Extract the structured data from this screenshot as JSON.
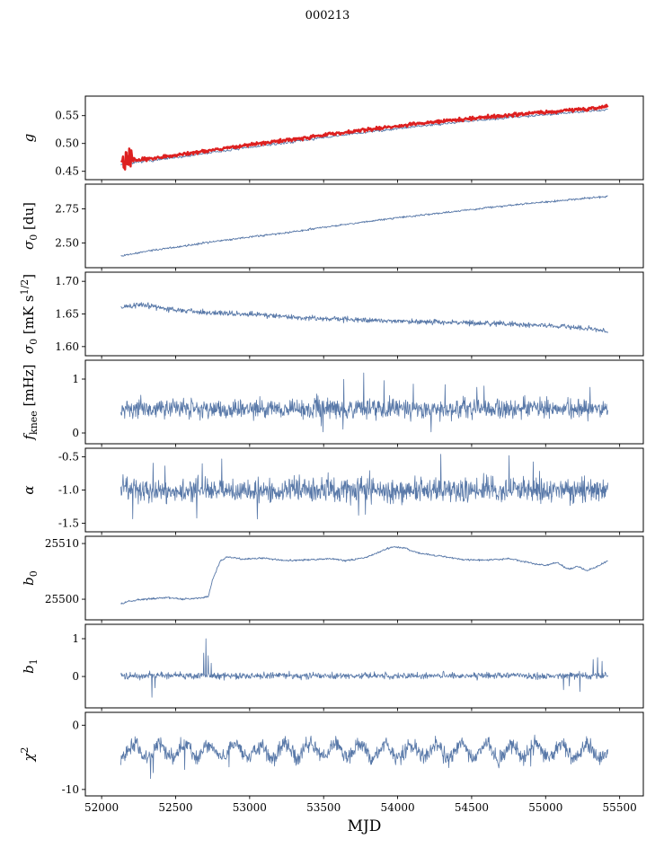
{
  "title": "000213",
  "chart_data": {
    "type": "line",
    "title": "000213",
    "xlabel": "MJD",
    "xlim": [
      51890,
      55660
    ],
    "xdata": [
      52130,
      55420
    ],
    "xticks": [
      52000,
      52500,
      53000,
      53500,
      54000,
      54500,
      55000,
      55500
    ],
    "seed": 7,
    "grid": false,
    "legend": "none",
    "colors": {
      "blue": "#5878a8",
      "red": "#dd2020"
    },
    "panels": [
      {
        "name": "g",
        "label": [
          {
            "t": "g",
            "i": 1
          }
        ],
        "ylim": [
          0.435,
          0.585
        ],
        "yticks": [
          0.45,
          0.5,
          0.55
        ],
        "dec": 2,
        "series": [
          {
            "color": "blue",
            "lw": 0.9,
            "n": 700,
            "noise": 0.0012,
            "trend": [
              [
                52130,
                0.4625
              ],
              [
                52300,
                0.468
              ],
              [
                52500,
                0.4745
              ],
              [
                52750,
                0.484
              ],
              [
                53000,
                0.493
              ],
              [
                53250,
                0.5015
              ],
              [
                53500,
                0.5105
              ],
              [
                53750,
                0.519
              ],
              [
                54000,
                0.527
              ],
              [
                54250,
                0.534
              ],
              [
                54500,
                0.5405
              ],
              [
                54750,
                0.5465
              ],
              [
                55000,
                0.552
              ],
              [
                55150,
                0.555
              ],
              [
                55300,
                0.558
              ],
              [
                55370,
                0.5595
              ],
              [
                55420,
                0.561
              ]
            ]
          },
          {
            "color": "red",
            "lw": 2.4,
            "n": 700,
            "noise": 0.0017,
            "head": {
              "until": 52210,
              "amp": 0.011
            },
            "trend": [
              [
                52130,
                0.467
              ],
              [
                52300,
                0.4725
              ],
              [
                52500,
                0.479
              ],
              [
                52750,
                0.4885
              ],
              [
                53000,
                0.4975
              ],
              [
                53250,
                0.506
              ],
              [
                53500,
                0.515
              ],
              [
                53750,
                0.5235
              ],
              [
                54000,
                0.5315
              ],
              [
                54250,
                0.5385
              ],
              [
                54500,
                0.545
              ],
              [
                54750,
                0.551
              ],
              [
                55000,
                0.5565
              ],
              [
                55150,
                0.5595
              ],
              [
                55300,
                0.5625
              ],
              [
                55420,
                0.567
              ]
            ]
          }
        ]
      },
      {
        "name": "sigma0 [du]",
        "label": [
          {
            "t": "σ",
            "i": 1
          },
          {
            "t": "0",
            "sub": 1
          },
          {
            "t": " [du]"
          }
        ],
        "ylim": [
          2.32,
          2.93
        ],
        "yticks": [
          2.5,
          2.75
        ],
        "dec": 2,
        "series": [
          {
            "color": "blue",
            "lw": 0.9,
            "n": 800,
            "noise": 0.004,
            "trend": [
              [
                52130,
                2.405
              ],
              [
                52300,
                2.44
              ],
              [
                52500,
                2.47
              ],
              [
                52750,
                2.51
              ],
              [
                53000,
                2.545
              ],
              [
                53250,
                2.575
              ],
              [
                53500,
                2.615
              ],
              [
                53750,
                2.65
              ],
              [
                54000,
                2.685
              ],
              [
                54250,
                2.715
              ],
              [
                54500,
                2.745
              ],
              [
                54750,
                2.775
              ],
              [
                55000,
                2.8
              ],
              [
                55200,
                2.82
              ],
              [
                55420,
                2.84
              ]
            ]
          }
        ]
      },
      {
        "name": "sigma0 [mK s^(1/2)]",
        "label": [
          {
            "t": "σ",
            "i": 1
          },
          {
            "t": "0",
            "sub": 1
          },
          {
            "t": " [mK s"
          },
          {
            "t": "1/2",
            "sup": 1
          },
          {
            "t": "]"
          }
        ],
        "ylim": [
          1.586,
          1.714
        ],
        "yticks": [
          1.6,
          1.65,
          1.7
        ],
        "dec": 2,
        "series": [
          {
            "color": "blue",
            "lw": 0.9,
            "n": 1000,
            "noise": 0.0022,
            "trend": [
              [
                52130,
                1.66
              ],
              [
                52250,
                1.664
              ],
              [
                52350,
                1.661
              ],
              [
                52500,
                1.656
              ],
              [
                52700,
                1.652
              ],
              [
                53000,
                1.65
              ],
              [
                53300,
                1.645
              ],
              [
                53600,
                1.642
              ],
              [
                54000,
                1.639
              ],
              [
                54400,
                1.637
              ],
              [
                54800,
                1.634
              ],
              [
                55100,
                1.631
              ],
              [
                55300,
                1.628
              ],
              [
                55420,
                1.623
              ]
            ]
          }
        ]
      },
      {
        "name": "f_knee [mHz]",
        "label": [
          {
            "t": "f",
            "i": 1
          },
          {
            "t": "knee",
            "sub": 1
          },
          {
            "t": " [mHz]"
          }
        ],
        "ylim": [
          -0.2,
          1.35
        ],
        "yticks": [
          0,
          1
        ],
        "dec": 0,
        "series": [
          {
            "color": "blue",
            "lw": 0.8,
            "n": 1150,
            "base": 0.45,
            "noise": 0.1,
            "spike_prob": 0.012,
            "spike_amp": 0.4,
            "spike_dir": 0,
            "clip": [
              0.02,
              1.3
            ]
          }
        ]
      },
      {
        "name": "alpha",
        "label": [
          {
            "t": "α",
            "i": 1
          }
        ],
        "ylim": [
          -1.63,
          -0.37
        ],
        "yticks": [
          -1.5,
          -1.0,
          -0.5
        ],
        "dec": 1,
        "series": [
          {
            "color": "blue",
            "lw": 0.8,
            "n": 1150,
            "base": -1.0,
            "noise": 0.1,
            "spike_prob": 0.018,
            "spike_amp": 0.32,
            "spike_dir": 0,
            "clip": [
              -1.52,
              -0.46
            ]
          }
        ]
      },
      {
        "name": "b0",
        "label": [
          {
            "t": "b",
            "i": 1
          },
          {
            "t": "0",
            "sub": 1
          }
        ],
        "ylim": [
          25496.3,
          25511.3
        ],
        "yticks": [
          25500,
          25510
        ],
        "dec": 0,
        "series": [
          {
            "color": "blue",
            "lw": 0.9,
            "n": 900,
            "noise": 0.09,
            "trend": [
              [
                52130,
                25499.2
              ],
              [
                52180,
                25499.6
              ],
              [
                52250,
                25499.9
              ],
              [
                52350,
                25500.1
              ],
              [
                52450,
                25500.3
              ],
              [
                52550,
                25500.0
              ],
              [
                52650,
                25500.2
              ],
              [
                52720,
                25500.4
              ],
              [
                52750,
                25503.5
              ],
              [
                52800,
                25506.8
              ],
              [
                52850,
                25507.6
              ],
              [
                52950,
                25507.2
              ],
              [
                53100,
                25507.4
              ],
              [
                53250,
                25506.9
              ],
              [
                53400,
                25507.1
              ],
              [
                53550,
                25507.3
              ],
              [
                53650,
                25506.9
              ],
              [
                53800,
                25507.6
              ],
              [
                53900,
                25508.8
              ],
              [
                53970,
                25509.4
              ],
              [
                54050,
                25509.2
              ],
              [
                54150,
                25508.2
              ],
              [
                54300,
                25507.7
              ],
              [
                54450,
                25507.1
              ],
              [
                54600,
                25507.0
              ],
              [
                54750,
                25507.3
              ],
              [
                54900,
                25506.5
              ],
              [
                55000,
                25506.1
              ],
              [
                55080,
                25506.6
              ],
              [
                55150,
                25505.4
              ],
              [
                55220,
                25505.9
              ],
              [
                55280,
                25505.1
              ],
              [
                55350,
                25505.9
              ],
              [
                55420,
                25506.9
              ]
            ]
          }
        ]
      },
      {
        "name": "b1",
        "label": [
          {
            "t": "b",
            "i": 1
          },
          {
            "t": "1",
            "sub": 1
          }
        ],
        "ylim": [
          -0.83,
          1.38
        ],
        "yticks": [
          0,
          1
        ],
        "dec": 0,
        "series": [
          {
            "color": "blue",
            "lw": 0.8,
            "n": 1100,
            "base": 0.02,
            "noise": 0.05,
            "clip": [
              -0.75,
              1.05
            ],
            "spikes": [
              [
                52340,
                -0.55
              ],
              [
                52360,
                -0.3
              ],
              [
                52690,
                0.62
              ],
              [
                52705,
                1.0
              ],
              [
                52720,
                0.55
              ],
              [
                52740,
                0.35
              ],
              [
                55120,
                -0.35
              ],
              [
                55160,
                -0.25
              ],
              [
                55230,
                -0.4
              ],
              [
                55320,
                0.45
              ],
              [
                55350,
                0.5
              ],
              [
                55380,
                0.4
              ]
            ]
          }
        ]
      },
      {
        "name": "chi^2",
        "label": [
          {
            "t": "χ",
            "i": 1
          },
          {
            "t": "2",
            "sup": 1
          }
        ],
        "ylim": [
          -11,
          2
        ],
        "yticks": [
          -10,
          0
        ],
        "dec": 0,
        "series": [
          {
            "color": "blue",
            "lw": 0.8,
            "n": 1100,
            "base": -4.0,
            "noise": 0.65,
            "osc": {
              "amp": 1.1,
              "period": 170,
              "phase": 0.5
            },
            "spike_prob": 0.006,
            "spike_amp": 1.8,
            "spike_dir": -1,
            "spikes": [
              [
                52330,
                -8.3
              ],
              [
                52350,
                -7.4
              ],
              [
                52560,
                -6.9
              ],
              [
                52860,
                -6.5
              ]
            ],
            "clip": [
              -9.5,
              -0.3
            ]
          }
        ]
      }
    ]
  }
}
